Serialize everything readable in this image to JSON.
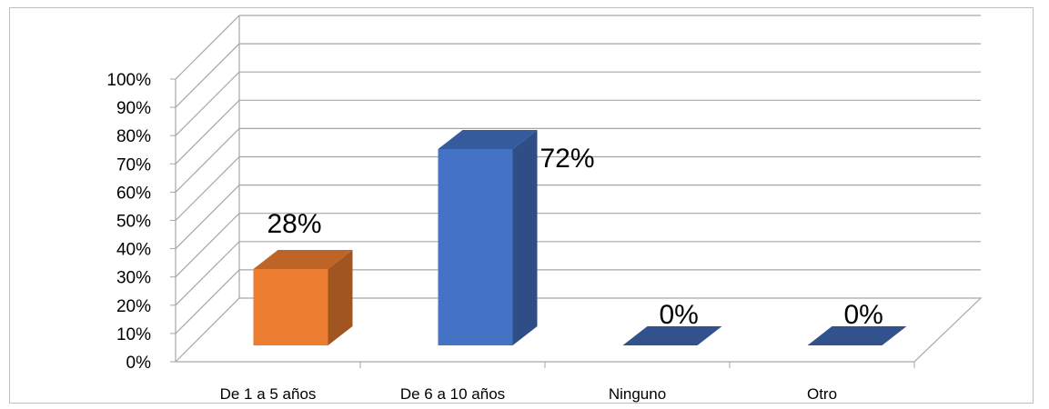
{
  "chart_data": {
    "type": "bar",
    "categories": [
      "De 1 a 5 años",
      "De 6 a 10 años",
      "Ninguno",
      "Otro"
    ],
    "values": [
      28,
      72,
      0,
      0
    ],
    "data_labels": [
      "28%",
      "72%",
      "0%",
      "0%"
    ],
    "ylim": [
      0,
      100
    ],
    "y_ticks": [
      0,
      10,
      20,
      30,
      40,
      50,
      60,
      70,
      80,
      90,
      100
    ],
    "y_tick_labels": [
      "0%",
      "10%",
      "20%",
      "30%",
      "40%",
      "50%",
      "60%",
      "70%",
      "80%",
      "90%",
      "100%"
    ],
    "grid": true,
    "legend": "none",
    "style": "3d-column",
    "colors": {
      "bars": [
        "#ED7D31",
        "#4472C4",
        "#4472C4",
        "#4472C4"
      ],
      "grid": "#a6a6a6"
    }
  }
}
